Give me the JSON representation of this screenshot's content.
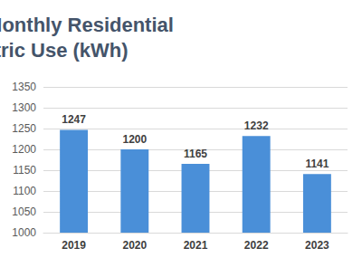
{
  "chart_data": {
    "type": "bar",
    "title": "Average Monthly Residential Electric Use (kWh)",
    "categories": [
      "2019",
      "2020",
      "2021",
      "2022",
      "2023"
    ],
    "values": [
      1247,
      1200,
      1165,
      1232,
      1141
    ],
    "color": "#4a8fd8",
    "ylim": [
      1000,
      1350
    ],
    "yticks": [
      1000,
      1050,
      1100,
      1150,
      1200,
      1250,
      1300,
      1350
    ],
    "grid": true,
    "data_labels": true
  }
}
